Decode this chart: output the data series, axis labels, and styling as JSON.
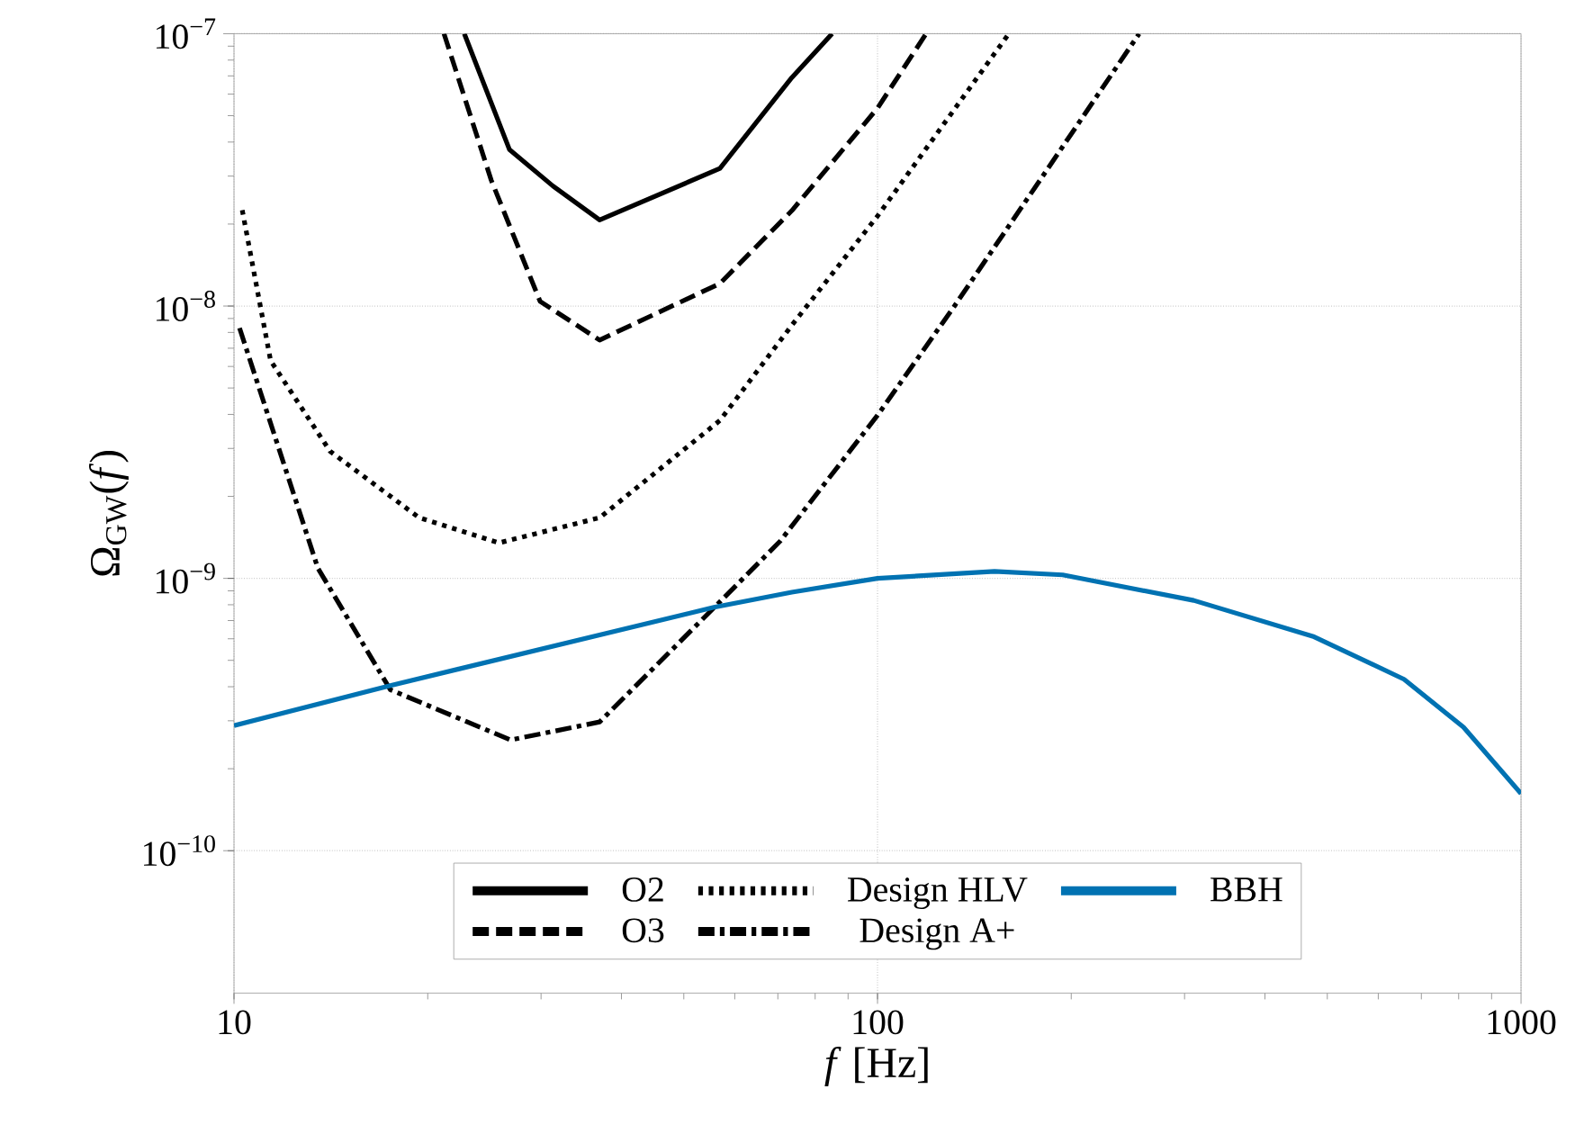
{
  "chart_data": {
    "type": "line",
    "xlabel": "*f* [Hz]",
    "ylabel": "Ω$_{GW}$(*f*)",
    "log": "xy",
    "grid": true,
    "legend": "bottom",
    "xlim": [
      10,
      1000
    ],
    "xticks": [
      10,
      100,
      1000
    ],
    "ylim": [
      3e-11,
      1e-07
    ],
    "yticks": [
      {
        "value": 1e-10,
        "label": "10$^{−10}$"
      },
      {
        "value": 1e-09,
        "label": "10$^{−9}$"
      },
      {
        "value": 1e-08,
        "label": "10$^{−8}$"
      },
      {
        "value": 1e-07,
        "label": "10$^{−7}$"
      }
    ],
    "series": [
      {
        "name": "O2",
        "color": "#000000",
        "line_style": "solid",
        "x": [
          22.8,
          26.8,
          31.3,
          37,
          56.9,
          73.6,
          85
        ],
        "values": [
          1e-07,
          3.75e-08,
          2.76e-08,
          2.07e-08,
          3.2e-08,
          6.9e-08,
          1e-07
        ]
      },
      {
        "name": "O3",
        "color": "#000000",
        "line_style": "dashed",
        "x": [
          21.2,
          25.1,
          29.9,
          37,
          56.9,
          73.6,
          100,
          119
        ],
        "values": [
          1e-07,
          2.9e-08,
          1.04e-08,
          7.5e-09,
          1.21e-08,
          2.24e-08,
          5.33e-08,
          1e-07
        ]
      },
      {
        "name": "Design HLV",
        "color": "#000000",
        "line_style": "dotted",
        "x": [
          10.3,
          11.4,
          14.1,
          19.4,
          25.8,
          37,
          56.9,
          73.6,
          100,
          160
        ],
        "values": [
          2.25e-08,
          6.3e-09,
          2.93e-09,
          1.67e-09,
          1.35e-09,
          1.67e-09,
          3.8e-09,
          8.5e-09,
          2.14e-08,
          1e-07
        ]
      },
      {
        "name": "Design A+",
        "color": "#000000",
        "line_style": "dashdot",
        "x": [
          10.2,
          13.5,
          17.5,
          26.9,
          37,
          55.7,
          70.6,
          100,
          131.5,
          181.5,
          255
        ],
        "values": [
          8.3e-09,
          1.09e-09,
          3.9e-10,
          2.55e-10,
          2.97e-10,
          7.8e-10,
          1.37e-09,
          3.97e-09,
          9.95e-09,
          3.05e-08,
          1e-07
        ]
      },
      {
        "name": "BBH",
        "color": "#0072b2",
        "line_style": "solid",
        "x": [
          10,
          17.5,
          55.7,
          73.6,
          100,
          152,
          194,
          310,
          477,
          658,
          814,
          1000
        ],
        "values": [
          2.88e-10,
          4.04e-10,
          7.83e-10,
          8.9e-10,
          1e-09,
          1.06e-09,
          1.03e-09,
          8.3e-10,
          6.1e-10,
          4.26e-10,
          2.84e-10,
          1.62e-10
        ]
      }
    ]
  }
}
